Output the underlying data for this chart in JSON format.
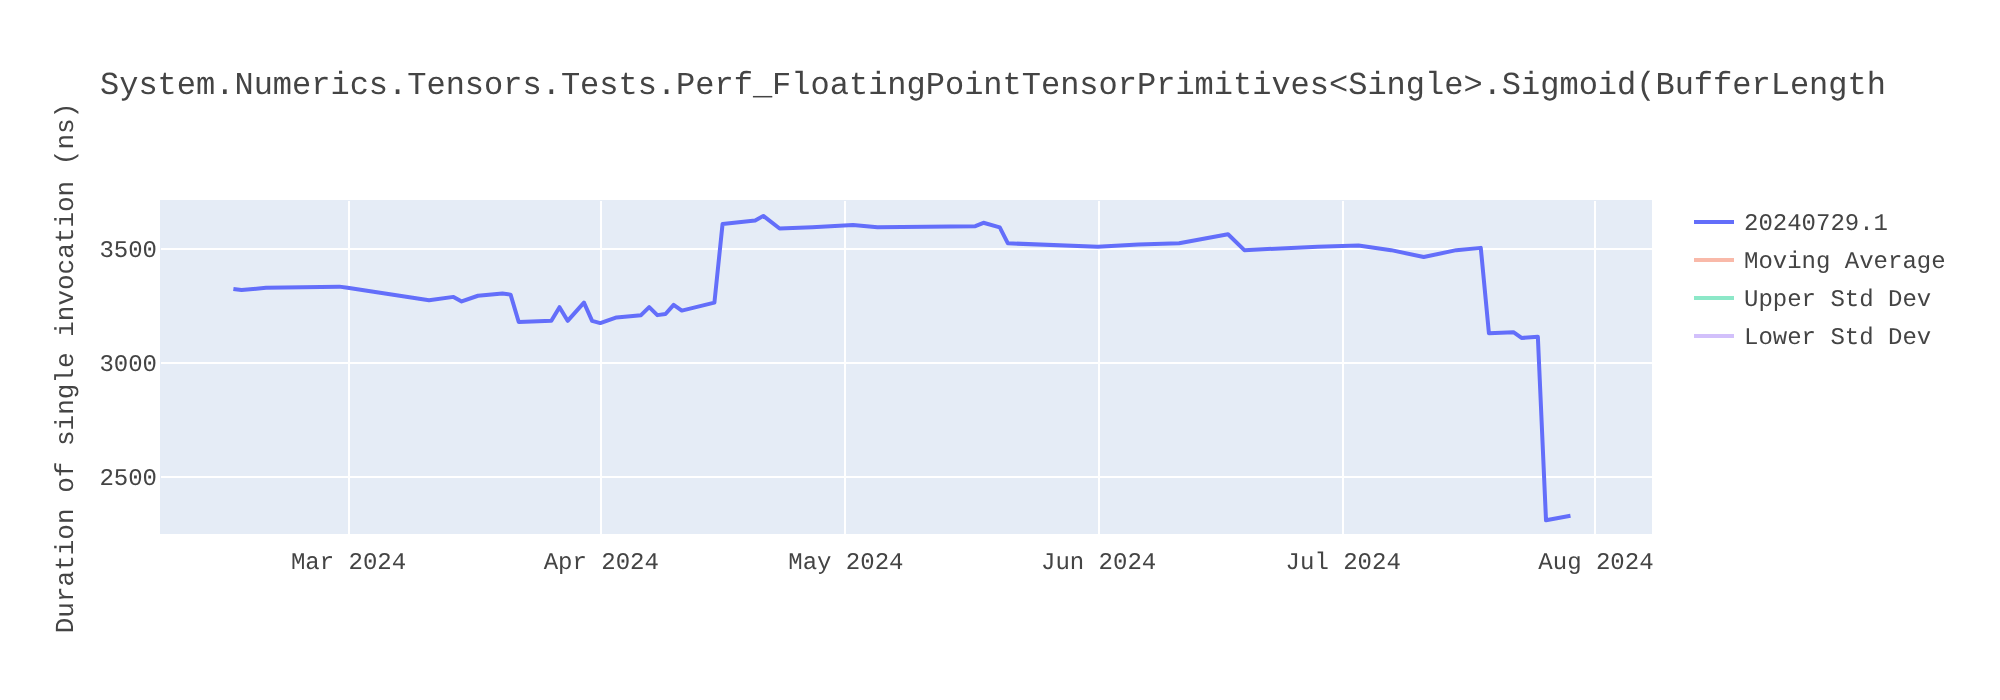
{
  "chart_data": {
    "type": "line",
    "title": "System.Numerics.Tensors.Tests.Perf_FloatingPointTensorPrimitives<Single>.Sigmoid(BufferLength",
    "ylabel": "Duration of single invocation (ns)",
    "x": [
      "2024-02-16",
      "2024-02-17",
      "2024-02-20",
      "2024-02-29",
      "2024-03-01",
      "2024-03-11",
      "2024-03-14",
      "2024-03-15",
      "2024-03-17",
      "2024-03-20",
      "2024-03-21",
      "2024-03-22",
      "2024-03-26",
      "2024-03-27",
      "2024-03-28",
      "2024-03-30",
      "2024-03-31",
      "2024-04-01",
      "2024-04-03",
      "2024-04-06",
      "2024-04-07",
      "2024-04-08",
      "2024-04-09",
      "2024-04-10",
      "2024-04-11",
      "2024-04-15",
      "2024-04-16",
      "2024-04-20",
      "2024-04-21",
      "2024-04-23",
      "2024-04-27",
      "2024-05-02",
      "2024-05-05",
      "2024-05-17",
      "2024-05-18",
      "2024-05-20",
      "2024-05-21",
      "2024-06-01",
      "2024-06-06",
      "2024-06-11",
      "2024-06-17",
      "2024-06-19",
      "2024-06-28",
      "2024-07-03",
      "2024-07-07",
      "2024-07-11",
      "2024-07-15",
      "2024-07-18",
      "2024-07-19",
      "2024-07-22",
      "2024-07-23",
      "2024-07-25",
      "2024-07-26",
      "2024-07-29"
    ],
    "series": [
      {
        "name": "20240729.1",
        "color": "#636efa",
        "values": [
          3320,
          3315,
          3325,
          3330,
          3325,
          3270,
          3285,
          3265,
          3290,
          3300,
          3295,
          3175,
          3180,
          3240,
          3180,
          3260,
          3180,
          3170,
          3195,
          3205,
          3240,
          3205,
          3210,
          3250,
          3225,
          3260,
          3605,
          3620,
          3640,
          3585,
          3590,
          3600,
          3590,
          3595,
          3610,
          3590,
          3520,
          3505,
          3515,
          3520,
          3560,
          3490,
          3505,
          3510,
          3490,
          3460,
          3490,
          3500,
          3125,
          3130,
          3105,
          3110,
          2305,
          2325
        ]
      },
      {
        "name": "Moving Average",
        "color": "#f9b9a9",
        "values": [
          null,
          null,
          null,
          null,
          null,
          null,
          null,
          null,
          null,
          null,
          null,
          null,
          null,
          null,
          null,
          null,
          null,
          null,
          null,
          null,
          null,
          null,
          null,
          null,
          null,
          null,
          null,
          null,
          null,
          null,
          null,
          null,
          null,
          null,
          null,
          null,
          null,
          null,
          null,
          null,
          null,
          null,
          null,
          null,
          null,
          null,
          null,
          null,
          null,
          null,
          null,
          null,
          null,
          null
        ]
      },
      {
        "name": "Upper Std Dev",
        "color": "#8ce8c8",
        "values": [
          null,
          null,
          null,
          null,
          null,
          null,
          null,
          null,
          null,
          null,
          null,
          null,
          null,
          null,
          null,
          null,
          null,
          null,
          null,
          null,
          null,
          null,
          null,
          null,
          null,
          null,
          null,
          null,
          null,
          null,
          null,
          null,
          null,
          null,
          null,
          null,
          null,
          null,
          null,
          null,
          null,
          null,
          null,
          null,
          null,
          null,
          null,
          null,
          null,
          null,
          null,
          null,
          null,
          null
        ]
      },
      {
        "name": "Lower Std Dev",
        "color": "#d2c0fb",
        "values": [
          null,
          null,
          null,
          null,
          null,
          null,
          null,
          null,
          null,
          null,
          null,
          null,
          null,
          null,
          null,
          null,
          null,
          null,
          null,
          null,
          null,
          null,
          null,
          null,
          null,
          null,
          null,
          null,
          null,
          null,
          null,
          null,
          null,
          null,
          null,
          null,
          null,
          null,
          null,
          null,
          null,
          null,
          null,
          null,
          null,
          null,
          null,
          null,
          null,
          null,
          null,
          null,
          null,
          null
        ]
      }
    ],
    "xlim": [
      "2024-02-07",
      "2024-08-08"
    ],
    "xticks": [
      {
        "value": "2024-03-01",
        "label": "Mar 2024"
      },
      {
        "value": "2024-04-01",
        "label": "Apr 2024"
      },
      {
        "value": "2024-05-01",
        "label": "May 2024"
      },
      {
        "value": "2024-06-01",
        "label": "Jun 2024"
      },
      {
        "value": "2024-07-01",
        "label": "Jul 2024"
      },
      {
        "value": "2024-08-01",
        "label": "Aug 2024"
      }
    ],
    "ylim": [
      2245,
      3710
    ],
    "yticks": [
      2500,
      3000,
      3500
    ],
    "grid": true,
    "legend": "top right"
  }
}
